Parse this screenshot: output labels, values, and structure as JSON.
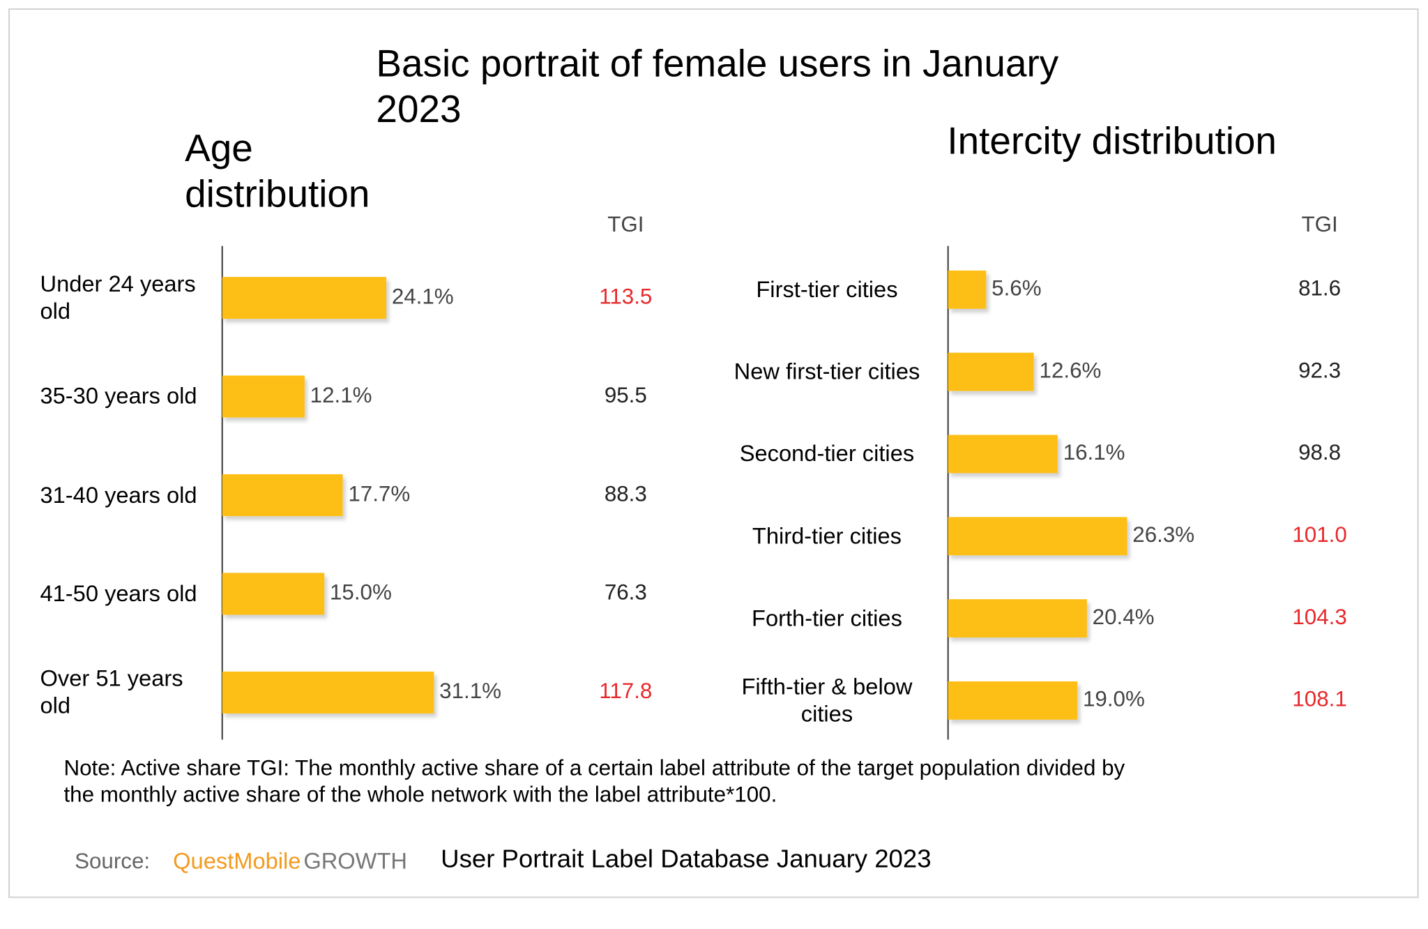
{
  "title": "Basic portrait of female users in January 2023",
  "note": "Note: Active share TGI: The monthly active share of a certain label attribute of the target population divided by the monthly active share of the whole network with the label attribute*100.",
  "source": {
    "label": "Source:",
    "brand": "QuestMobile",
    "brand_suffix": "GROWTH",
    "text": "User Portrait Label Database January 2023"
  },
  "chart_data": [
    {
      "type": "bar",
      "orientation": "horizontal",
      "title": "Age distribution",
      "categories": [
        "Under 24 years old",
        "35-30 years old",
        "31-40 years old",
        "41-50 years old",
        "Over 51 years old"
      ],
      "values": [
        24.1,
        12.1,
        17.7,
        15.0,
        31.1
      ],
      "value_labels": [
        "24.1%",
        "12.1%",
        "17.7%",
        "15.0%",
        "31.1%"
      ],
      "color": "#fdbf17",
      "xlim": [
        0,
        40
      ],
      "tgi": {
        "label": "TGI",
        "values": [
          113.5,
          95.5,
          88.3,
          76.3,
          117.8
        ],
        "value_labels": [
          "113.5",
          "95.5",
          "88.3",
          "76.3",
          "117.8"
        ],
        "colors": [
          "#e8282b",
          "#222222",
          "#222222",
          "#222222",
          "#e8282b"
        ]
      }
    },
    {
      "type": "bar",
      "orientation": "horizontal",
      "title": "Intercity distribution",
      "categories": [
        "First-tier cities",
        "New first-tier cities",
        "Second-tier cities",
        "Third-tier cities",
        "Forth-tier cities",
        "Fifth-tier & below cities"
      ],
      "values": [
        5.6,
        12.6,
        16.1,
        26.3,
        20.4,
        19.0
      ],
      "value_labels": [
        "5.6%",
        "12.6%",
        "16.1%",
        "26.3%",
        "20.4%",
        "19.0%"
      ],
      "color": "#fdbf17",
      "xlim": [
        0,
        40
      ],
      "tgi": {
        "label": "TGI",
        "values": [
          81.6,
          92.3,
          98.8,
          101.0,
          104.3,
          108.1
        ],
        "value_labels": [
          "81.6",
          "92.3",
          "98.8",
          "101.0",
          "104.3",
          "108.1"
        ],
        "colors": [
          "#222222",
          "#222222",
          "#222222",
          "#e8282b",
          "#e8282b",
          "#e8282b"
        ]
      }
    }
  ]
}
